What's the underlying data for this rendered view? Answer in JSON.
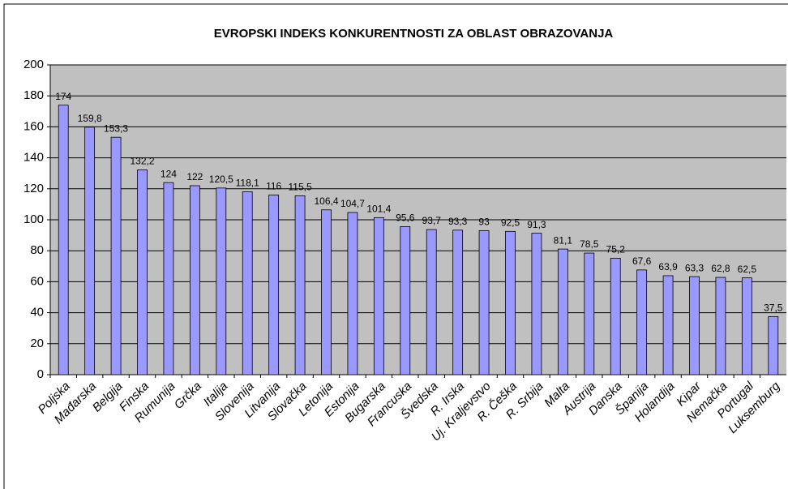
{
  "chart_data": {
    "type": "bar",
    "title": "EVROPSKI INDEKS KONKURENTNOSTI ZA OBLAST OBRAZOVANJA",
    "categories": [
      "Poljska",
      "Mađarska",
      "Belgija",
      "Finska",
      "Rumunija",
      "Grčka",
      "Italija",
      "Slovenija",
      "Litvanija",
      "Slovačka",
      "Letonija",
      "Estonija",
      "Bugarska",
      "Francuska",
      "Švedska",
      "R. Irska",
      "Uj. Kraljevstvo",
      "R. Češka",
      "R. Srbija",
      "Malta",
      "Austrija",
      "Danska",
      "Španija",
      "Holandija",
      "Kipar",
      "Nemačka",
      "Portugal",
      "Luksemburg"
    ],
    "values": [
      174,
      159.8,
      153.3,
      132.2,
      124,
      122,
      120.5,
      118.1,
      116,
      115.5,
      106.4,
      104.7,
      101.4,
      95.6,
      93.7,
      93.3,
      93,
      92.5,
      91.3,
      81.1,
      78.5,
      75.2,
      67.6,
      63.9,
      63.3,
      62.8,
      62.5,
      37.5
    ],
    "value_labels": [
      "174",
      "159,8",
      "153,3",
      "132,2",
      "124",
      "122",
      "120,5",
      "118,1",
      "116",
      "115,5",
      "106,4",
      "104,7",
      "101,4",
      "95,6",
      "93,7",
      "93,3",
      "93",
      "92,5",
      "91,3",
      "81,1",
      "78,5",
      "75,2",
      "67,6",
      "63,9",
      "63,3",
      "62,8",
      "62,5",
      "37,5"
    ],
    "color": "#9999ff",
    "ylim": [
      0,
      200
    ],
    "yticks": [
      0,
      20,
      40,
      60,
      80,
      100,
      120,
      140,
      160,
      180,
      200
    ],
    "grid": true
  }
}
